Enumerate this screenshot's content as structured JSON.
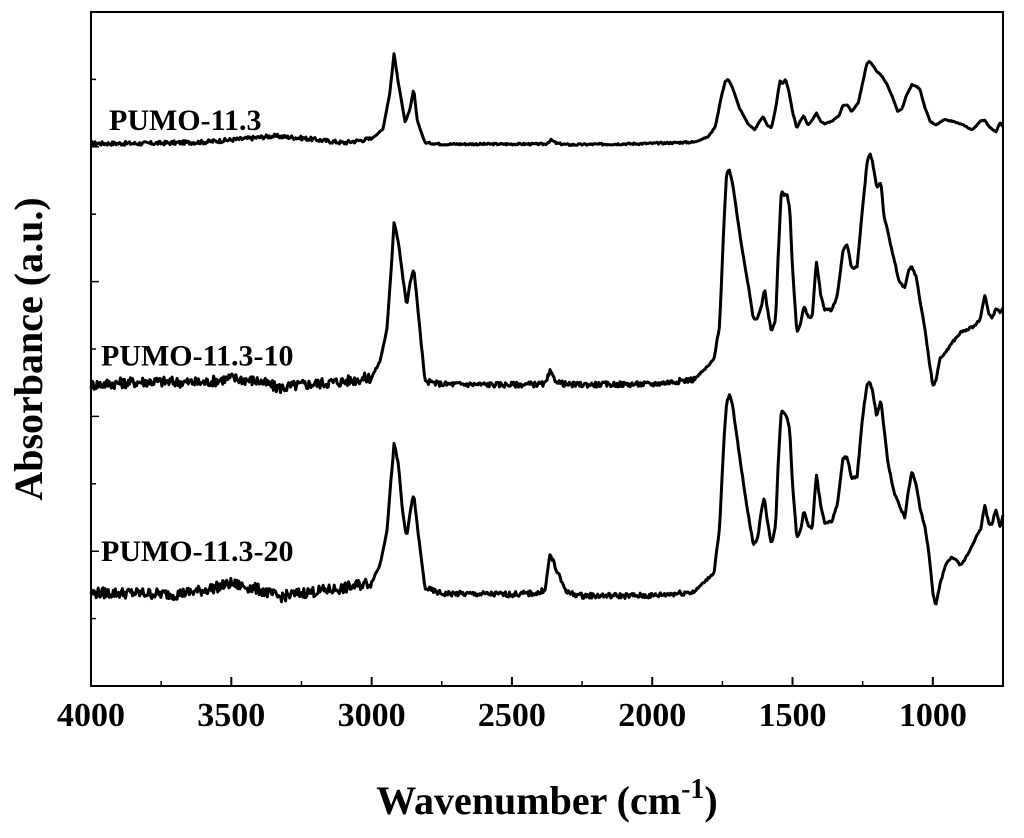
{
  "chart_data": {
    "type": "line",
    "xlabel": "Wavenumber (cm",
    "xlabel_superscript": "-1",
    "xlabel_suffix": ")",
    "ylabel": "Absorbance (a.u.)",
    "xlim": [
      4000,
      750
    ],
    "x_reversed": true,
    "xticks": [
      4000,
      3500,
      3000,
      2500,
      2000,
      1500,
      1000
    ],
    "xtick_labels": [
      "4000",
      "3500",
      "3000",
      "2500",
      "2000",
      "1500",
      "1000"
    ],
    "yticks_labeled": false,
    "ylim": [
      0,
      1
    ],
    "grid": false,
    "legend": "none",
    "series": [
      {
        "name": "PUMO-11.3",
        "x": [
          4000,
          3800,
          3600,
          3450,
          3350,
          3250,
          3100,
          3000,
          2960,
          2935,
          2920,
          2905,
          2880,
          2862,
          2850,
          2838,
          2810,
          2750,
          2500,
          2380,
          2360,
          2340,
          2300,
          2000,
          1850,
          1800,
          1775,
          1755,
          1740,
          1730,
          1715,
          1690,
          1660,
          1635,
          1620,
          1605,
          1590,
          1575,
          1560,
          1545,
          1535,
          1525,
          1515,
          1500,
          1485,
          1470,
          1460,
          1445,
          1430,
          1415,
          1400,
          1385,
          1360,
          1335,
          1320,
          1305,
          1290,
          1265,
          1250,
          1235,
          1225,
          1210,
          1195,
          1180,
          1165,
          1145,
          1125,
          1110,
          1095,
          1075,
          1060,
          1045,
          1030,
          1010,
          990,
          960,
          930,
          890,
          860,
          830,
          815,
          800,
          775,
          760,
          750
        ],
        "y": [
          0.805,
          0.805,
          0.807,
          0.812,
          0.816,
          0.813,
          0.806,
          0.812,
          0.826,
          0.88,
          0.939,
          0.895,
          0.836,
          0.858,
          0.886,
          0.84,
          0.806,
          0.804,
          0.804,
          0.804,
          0.81,
          0.805,
          0.803,
          0.805,
          0.807,
          0.815,
          0.83,
          0.872,
          0.897,
          0.9,
          0.889,
          0.858,
          0.835,
          0.825,
          0.836,
          0.845,
          0.832,
          0.828,
          0.858,
          0.898,
          0.893,
          0.9,
          0.886,
          0.852,
          0.828,
          0.84,
          0.846,
          0.832,
          0.84,
          0.85,
          0.838,
          0.834,
          0.838,
          0.846,
          0.862,
          0.862,
          0.852,
          0.866,
          0.895,
          0.924,
          0.927,
          0.918,
          0.91,
          0.904,
          0.894,
          0.875,
          0.852,
          0.856,
          0.875,
          0.892,
          0.89,
          0.885,
          0.86,
          0.838,
          0.832,
          0.84,
          0.838,
          0.832,
          0.825,
          0.838,
          0.84,
          0.83,
          0.822,
          0.836,
          0.83
        ]
      },
      {
        "name": "PUMO-11.3-10",
        "x": [
          4000,
          3800,
          3600,
          3500,
          3400,
          3330,
          3250,
          3100,
          3000,
          2970,
          2945,
          2930,
          2920,
          2905,
          2890,
          2875,
          2862,
          2850,
          2838,
          2810,
          2750,
          2500,
          2380,
          2365,
          2350,
          2330,
          2300,
          2000,
          1850,
          1800,
          1780,
          1760,
          1745,
          1735,
          1725,
          1715,
          1700,
          1680,
          1660,
          1640,
          1625,
          1610,
          1600,
          1590,
          1575,
          1560,
          1550,
          1540,
          1530,
          1520,
          1510,
          1500,
          1485,
          1470,
          1460,
          1445,
          1430,
          1415,
          1400,
          1385,
          1360,
          1340,
          1320,
          1305,
          1290,
          1270,
          1250,
          1235,
          1225,
          1215,
          1200,
          1185,
          1175,
          1160,
          1140,
          1120,
          1100,
          1085,
          1075,
          1060,
          1045,
          1030,
          1015,
          1000,
          990,
          975,
          955,
          930,
          900,
          870,
          850,
          830,
          815,
          800,
          790,
          775,
          760,
          750
        ],
        "y": [
          0.447,
          0.452,
          0.45,
          0.457,
          0.452,
          0.442,
          0.447,
          0.452,
          0.458,
          0.482,
          0.53,
          0.62,
          0.69,
          0.66,
          0.61,
          0.565,
          0.6,
          0.62,
          0.572,
          0.452,
          0.448,
          0.447,
          0.448,
          0.466,
          0.456,
          0.45,
          0.447,
          0.448,
          0.455,
          0.475,
          0.485,
          0.535,
          0.68,
          0.76,
          0.765,
          0.75,
          0.705,
          0.65,
          0.6,
          0.545,
          0.545,
          0.565,
          0.59,
          0.56,
          0.525,
          0.545,
          0.65,
          0.735,
          0.728,
          0.73,
          0.71,
          0.62,
          0.525,
          0.538,
          0.565,
          0.548,
          0.548,
          0.63,
          0.582,
          0.558,
          0.558,
          0.58,
          0.648,
          0.655,
          0.62,
          0.622,
          0.71,
          0.775,
          0.79,
          0.778,
          0.74,
          0.748,
          0.7,
          0.672,
          0.636,
          0.6,
          0.59,
          0.618,
          0.622,
          0.608,
          0.57,
          0.535,
          0.488,
          0.445,
          0.452,
          0.485,
          0.495,
          0.51,
          0.525,
          0.53,
          0.535,
          0.545,
          0.58,
          0.552,
          0.545,
          0.56,
          0.555,
          0.56
        ]
      },
      {
        "name": "PUMO-11.3-20",
        "x": [
          4000,
          3850,
          3700,
          3600,
          3500,
          3400,
          3330,
          3250,
          3100,
          3000,
          2970,
          2945,
          2930,
          2920,
          2905,
          2890,
          2875,
          2862,
          2850,
          2838,
          2810,
          2750,
          2500,
          2400,
          2380,
          2365,
          2350,
          2335,
          2315,
          2300,
          2250,
          2000,
          1850,
          1780,
          1760,
          1745,
          1735,
          1725,
          1715,
          1700,
          1680,
          1660,
          1640,
          1625,
          1610,
          1600,
          1590,
          1575,
          1560,
          1550,
          1540,
          1530,
          1520,
          1510,
          1500,
          1485,
          1470,
          1460,
          1445,
          1430,
          1415,
          1400,
          1385,
          1360,
          1340,
          1320,
          1305,
          1290,
          1270,
          1250,
          1235,
          1225,
          1215,
          1200,
          1185,
          1175,
          1160,
          1140,
          1120,
          1100,
          1085,
          1075,
          1060,
          1045,
          1030,
          1015,
          1000,
          990,
          975,
          955,
          930,
          900,
          870,
          850,
          830,
          815,
          800,
          790,
          775,
          760,
          750
        ],
        "y": [
          0.138,
          0.138,
          0.136,
          0.142,
          0.152,
          0.143,
          0.132,
          0.138,
          0.145,
          0.154,
          0.18,
          0.232,
          0.31,
          0.36,
          0.33,
          0.26,
          0.22,
          0.26,
          0.285,
          0.24,
          0.145,
          0.137,
          0.136,
          0.138,
          0.146,
          0.195,
          0.182,
          0.165,
          0.148,
          0.138,
          0.134,
          0.134,
          0.14,
          0.168,
          0.235,
          0.36,
          0.42,
          0.432,
          0.42,
          0.375,
          0.315,
          0.26,
          0.21,
          0.218,
          0.262,
          0.28,
          0.245,
          0.21,
          0.24,
          0.34,
          0.41,
          0.404,
          0.4,
          0.38,
          0.3,
          0.22,
          0.232,
          0.262,
          0.24,
          0.232,
          0.315,
          0.268,
          0.242,
          0.244,
          0.27,
          0.338,
          0.34,
          0.308,
          0.31,
          0.4,
          0.448,
          0.45,
          0.438,
          0.4,
          0.425,
          0.385,
          0.332,
          0.29,
          0.268,
          0.25,
          0.295,
          0.318,
          0.3,
          0.262,
          0.24,
          0.2,
          0.138,
          0.118,
          0.15,
          0.18,
          0.192,
          0.178,
          0.2,
          0.218,
          0.232,
          0.268,
          0.24,
          0.24,
          0.262,
          0.235,
          0.255
        ]
      }
    ]
  }
}
